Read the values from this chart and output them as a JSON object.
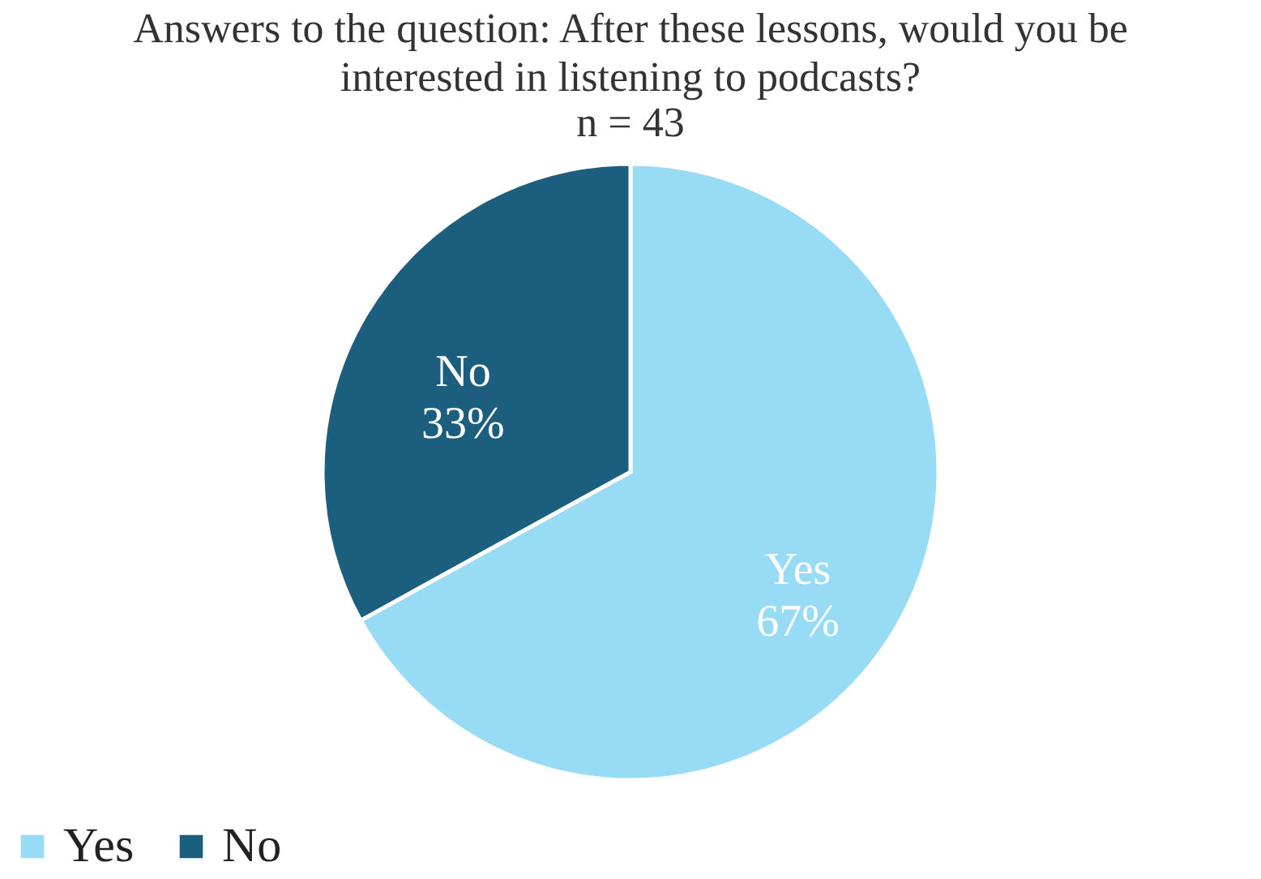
{
  "chart_data": {
    "type": "pie",
    "title": "Answers to the question: After these lessons, would you be interested in listening to podcasts?",
    "subtitle": "n = 43",
    "categories": [
      "Yes",
      "No"
    ],
    "values": [
      67,
      33
    ],
    "colors": [
      "#97dbf5",
      "#1b5e7e"
    ],
    "data_labels": true,
    "value_labels": [
      "67%",
      "33%"
    ],
    "legend": "bottom"
  }
}
